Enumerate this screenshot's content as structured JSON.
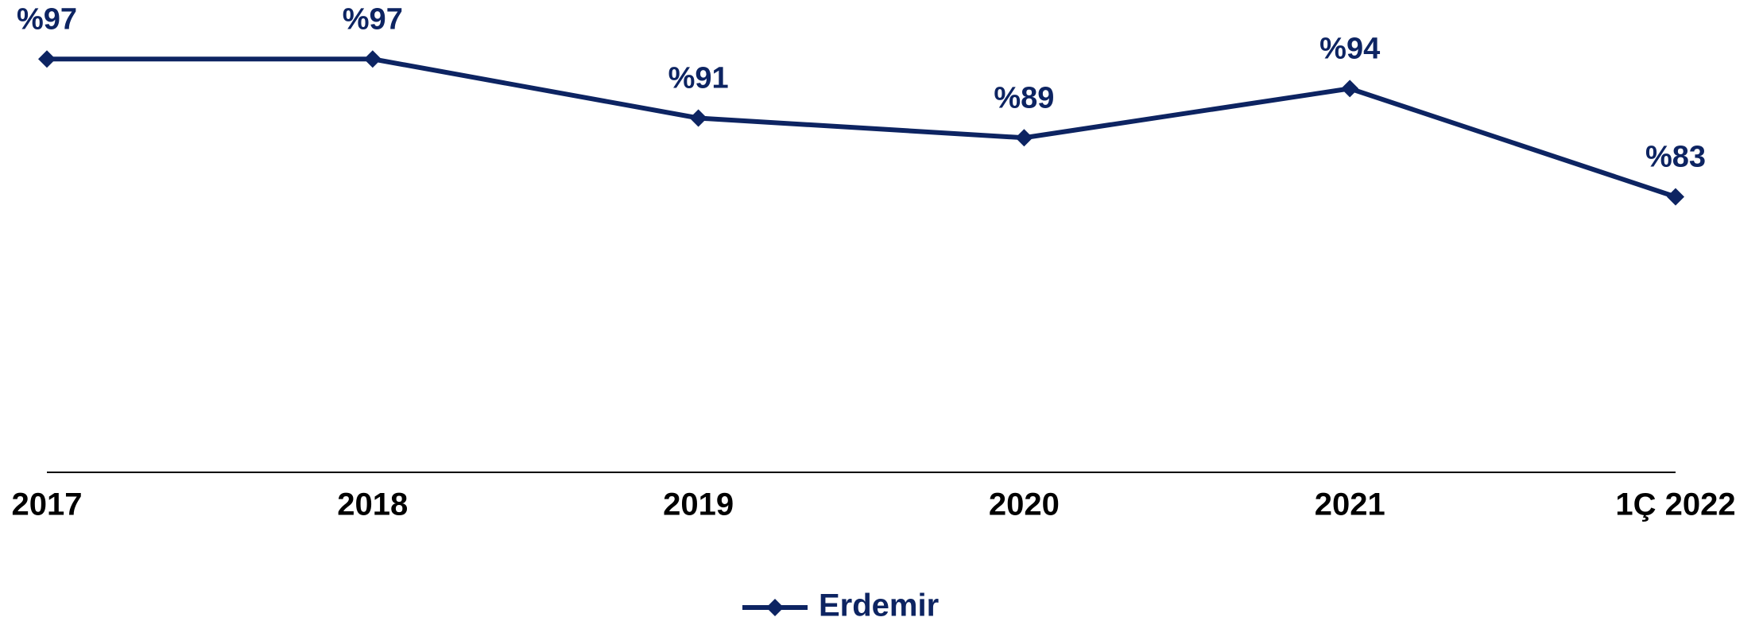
{
  "chart_data": {
    "type": "line",
    "categories": [
      "2017",
      "2018",
      "2019",
      "2020",
      "2021",
      "1Ç 2022"
    ],
    "series": [
      {
        "name": "Erdemir",
        "color": "#0d2462",
        "values": [
          97,
          97,
          91,
          89,
          94,
          83
        ],
        "value_labels": [
          "%97",
          "%97",
          "%91",
          "%89",
          "%94",
          "%83"
        ]
      }
    ],
    "ylim": [
      55,
      103
    ]
  }
}
